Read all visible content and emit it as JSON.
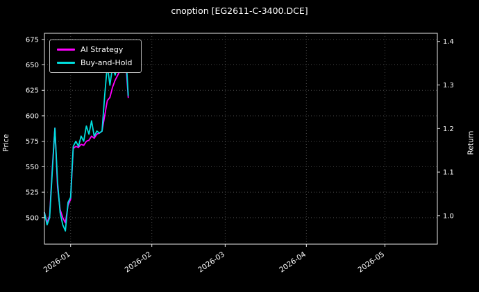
{
  "title": "cnoption [EG2611-C-3400.DCE]",
  "axes": {
    "left_label": "Price",
    "right_label": "Return",
    "left_ticks": [
      500,
      525,
      550,
      575,
      600,
      625,
      650,
      675
    ],
    "right_ticks": [
      {
        "label": "1.0",
        "price": 502
      },
      {
        "label": "1.1",
        "price": 544.75
      },
      {
        "label": "1.2",
        "price": 587.5
      },
      {
        "label": "1.3",
        "price": 630.25
      },
      {
        "label": "1.4",
        "price": 673
      }
    ],
    "x_ticks": [
      {
        "label": "2026-01",
        "day": 10
      },
      {
        "label": "2026-02",
        "day": 41
      },
      {
        "label": "2026-03",
        "day": 69
      },
      {
        "label": "2026-04",
        "day": 100
      },
      {
        "label": "2026-05",
        "day": 130
      }
    ],
    "x_domain": [
      0,
      150
    ],
    "y_domain": [
      474,
      681
    ]
  },
  "colors": {
    "background": "#000000",
    "text": "#ffffff",
    "grid": "#4d4d4d",
    "spine": "#e8e8e8",
    "ai_strategy": "#ff00ff",
    "buy_and_hold": "#00dede"
  },
  "chart_data": {
    "type": "line",
    "title": "cnoption [EG2611-C-3400.DCE]",
    "xlabel": "",
    "ylabel": "Price",
    "ylabel_right": "Return",
    "ylim": [
      474,
      681
    ],
    "right_ylim": [
      0.93,
      1.42
    ],
    "grid": true,
    "legend_position": "upper left",
    "x": [
      "2025-12-22",
      "2025-12-23",
      "2025-12-24",
      "2025-12-25",
      "2025-12-26",
      "2025-12-27",
      "2025-12-28",
      "2025-12-29",
      "2025-12-30",
      "2025-12-31",
      "2026-01-01",
      "2026-01-02",
      "2026-01-03",
      "2026-01-04",
      "2026-01-05",
      "2026-01-06",
      "2026-01-07",
      "2026-01-08",
      "2026-01-09",
      "2026-01-10",
      "2026-01-11",
      "2026-01-12",
      "2026-01-13",
      "2026-01-14",
      "2026-01-15",
      "2026-01-16",
      "2026-01-17",
      "2026-01-18",
      "2026-01-19",
      "2026-01-20",
      "2026-01-21",
      "2026-01-22",
      "2026-01-23"
    ],
    "x_days": [
      0,
      1,
      2,
      3,
      4,
      5,
      6,
      7,
      8,
      9,
      10,
      11,
      12,
      13,
      14,
      15,
      16,
      17,
      18,
      19,
      20,
      21,
      22,
      23,
      24,
      25,
      26,
      27,
      28,
      29,
      30,
      31,
      32
    ],
    "series": [
      {
        "name": "AI Strategy",
        "color": "#ff00ff",
        "values": [
          505,
          495,
          502,
          548,
          588,
          530,
          508,
          500,
          495,
          512,
          518,
          568,
          570,
          569,
          572,
          571,
          575,
          576,
          580,
          578,
          582,
          583,
          585,
          600,
          615,
          618,
          628,
          635,
          640,
          645,
          650,
          655,
          618
        ]
      },
      {
        "name": "Buy-and-Hold",
        "color": "#00dede",
        "values": [
          505,
          493,
          500,
          545,
          588,
          535,
          505,
          493,
          487,
          515,
          520,
          570,
          575,
          570,
          580,
          575,
          590,
          582,
          595,
          580,
          585,
          583,
          585,
          620,
          650,
          630,
          648,
          640,
          652,
          648,
          660,
          665,
          620
        ]
      }
    ]
  }
}
